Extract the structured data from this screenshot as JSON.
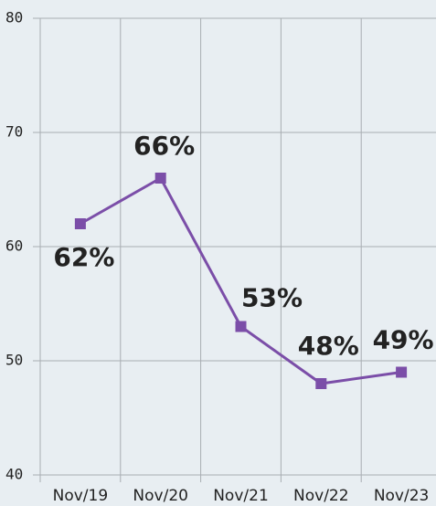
{
  "chart_data": {
    "type": "line",
    "categories": [
      "Nov/19",
      "Nov/20",
      "Nov/21",
      "Nov/22",
      "Nov/23"
    ],
    "series": [
      {
        "name": null,
        "color": "#7b4ea8",
        "values": [
          62,
          66,
          53,
          48,
          49
        ],
        "value_labels": [
          "62%",
          "66%",
          "53%",
          "48%",
          "49%"
        ]
      }
    ],
    "ylim": [
      40,
      80
    ],
    "yticks": [
      40,
      50,
      60,
      70,
      80
    ],
    "grid": true
  }
}
